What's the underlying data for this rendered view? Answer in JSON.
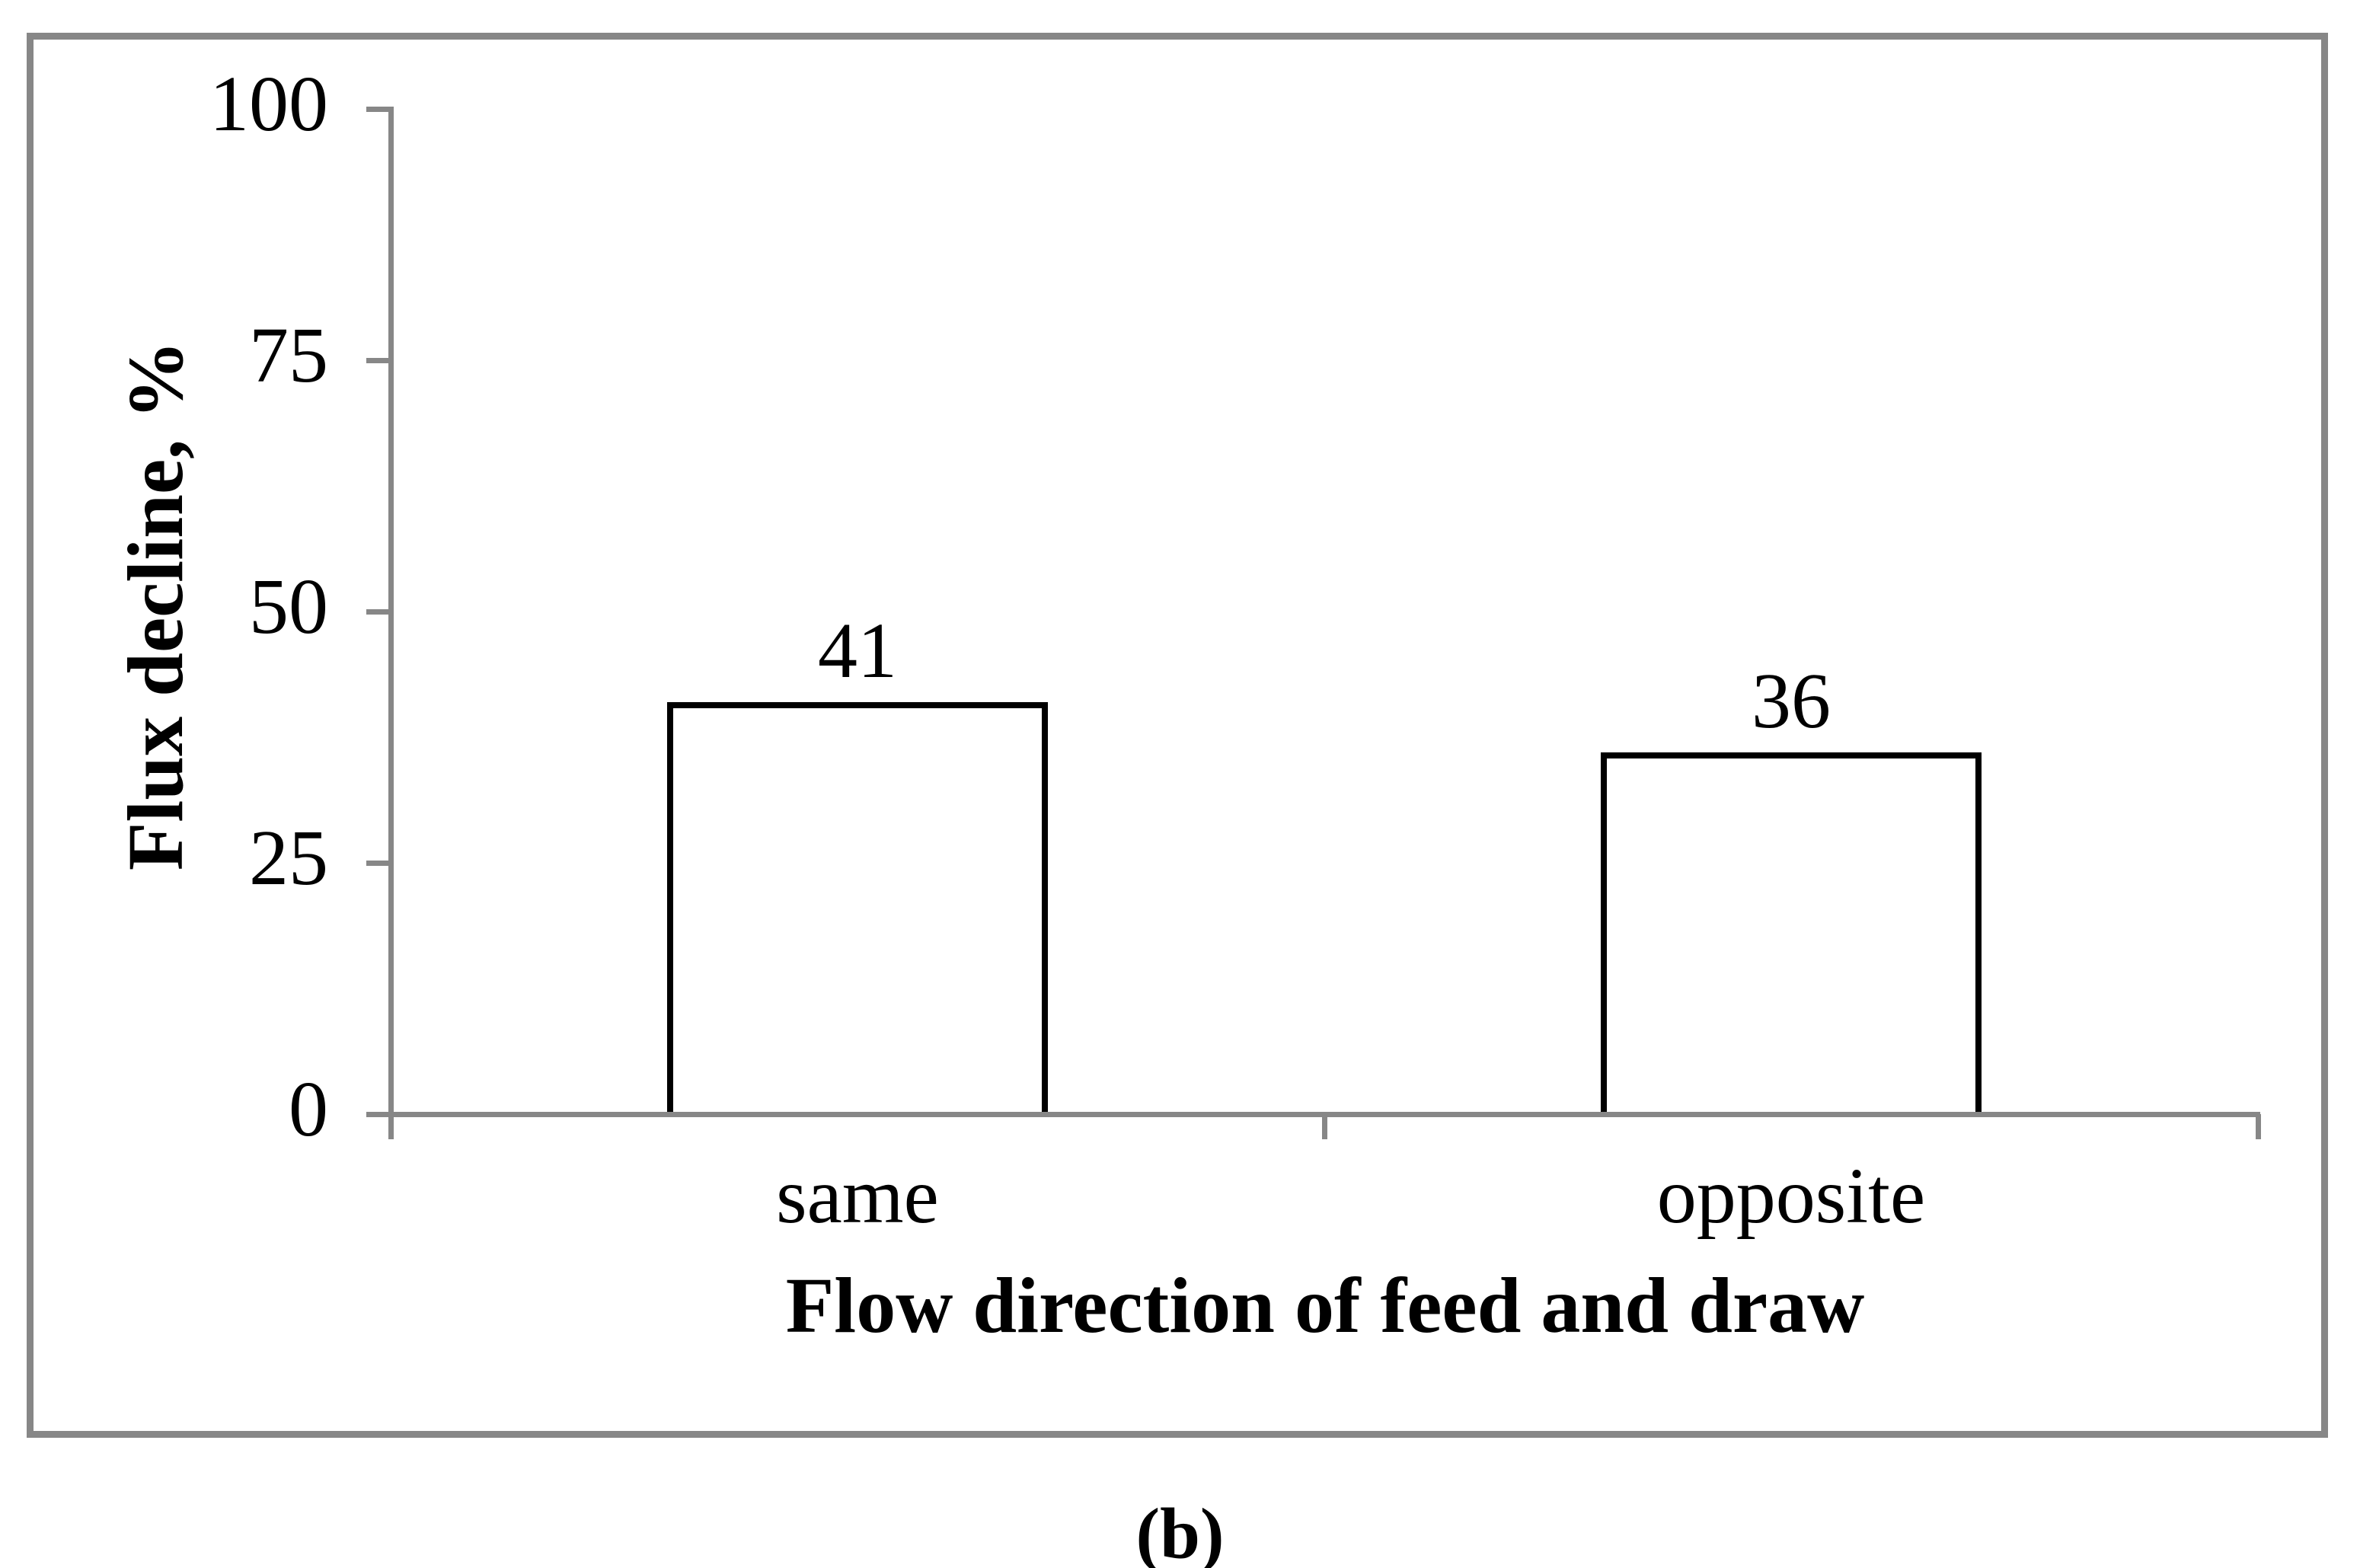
{
  "figure": {
    "caption": "(b)",
    "colors": {
      "frame_gray": "#878787",
      "axis_gray": "#878787",
      "bar_fill": "#ffffff",
      "bar_border": "#000000",
      "text": "#000000",
      "background": "#ffffff"
    }
  },
  "chart_data": {
    "type": "bar",
    "categories": [
      "same",
      "opposite"
    ],
    "values": [
      41,
      36
    ],
    "bar_labels": [
      "41",
      "36"
    ],
    "title": "",
    "xlabel": "Flow direction of feed and draw",
    "ylabel": "Flux decline, %",
    "ylim": [
      0,
      100
    ],
    "yticks": [
      0,
      25,
      50,
      75,
      100
    ],
    "grid": false,
    "legend_position": "none"
  }
}
